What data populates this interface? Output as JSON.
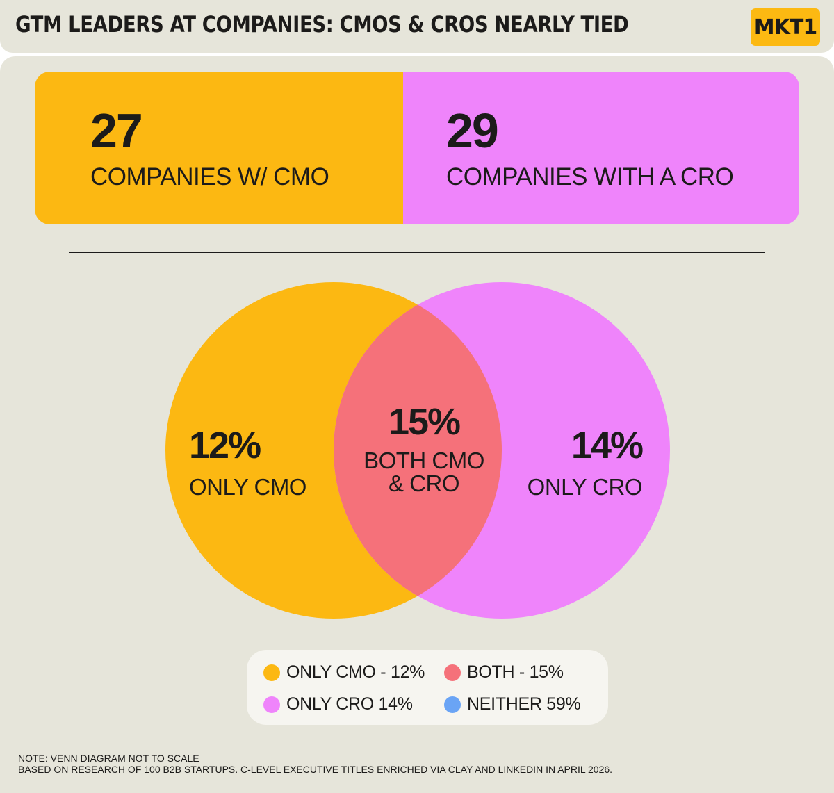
{
  "header": {
    "title": "GTM LEADERS AT COMPANIES: CMOS & CROS NEARLY TIED",
    "logo_text": "MKT1"
  },
  "stats": {
    "cmo": {
      "number": "27",
      "label": "COMPANIES W/ CMO"
    },
    "cro": {
      "number": "29",
      "label": "COMPANIES WITH A CRO"
    }
  },
  "venn": {
    "only_cmo": {
      "value": "12%",
      "label": "ONLY CMO"
    },
    "both": {
      "value": "15%",
      "label_line1": "BOTH CMO",
      "label_line2": "& CRO"
    },
    "only_cro": {
      "value": "14%",
      "label": "ONLY CRO"
    }
  },
  "legend": {
    "items": [
      {
        "label": "ONLY CMO - 12%",
        "color": "#fcb812"
      },
      {
        "label": "BOTH - 15%",
        "color": "#f5717a"
      },
      {
        "label": "ONLY CRO 14%",
        "color": "#ef84fb"
      },
      {
        "label": "NEITHER 59%",
        "color": "#6aa4f5"
      }
    ]
  },
  "notes": {
    "line1": "NOTE: VENN DIAGRAM NOT TO SCALE",
    "line2": "BASED ON RESEARCH OF 100 B2B STARTUPS. C-LEVEL EXECUTIVE TITLES ENRICHED VIA CLAY AND LINKEDIN IN APRIL 2026."
  },
  "colors": {
    "cmo": "#fcb812",
    "cro": "#ef84fb",
    "both": "#f5717a",
    "neither": "#6aa4f5",
    "background": "#e6e5da"
  }
}
